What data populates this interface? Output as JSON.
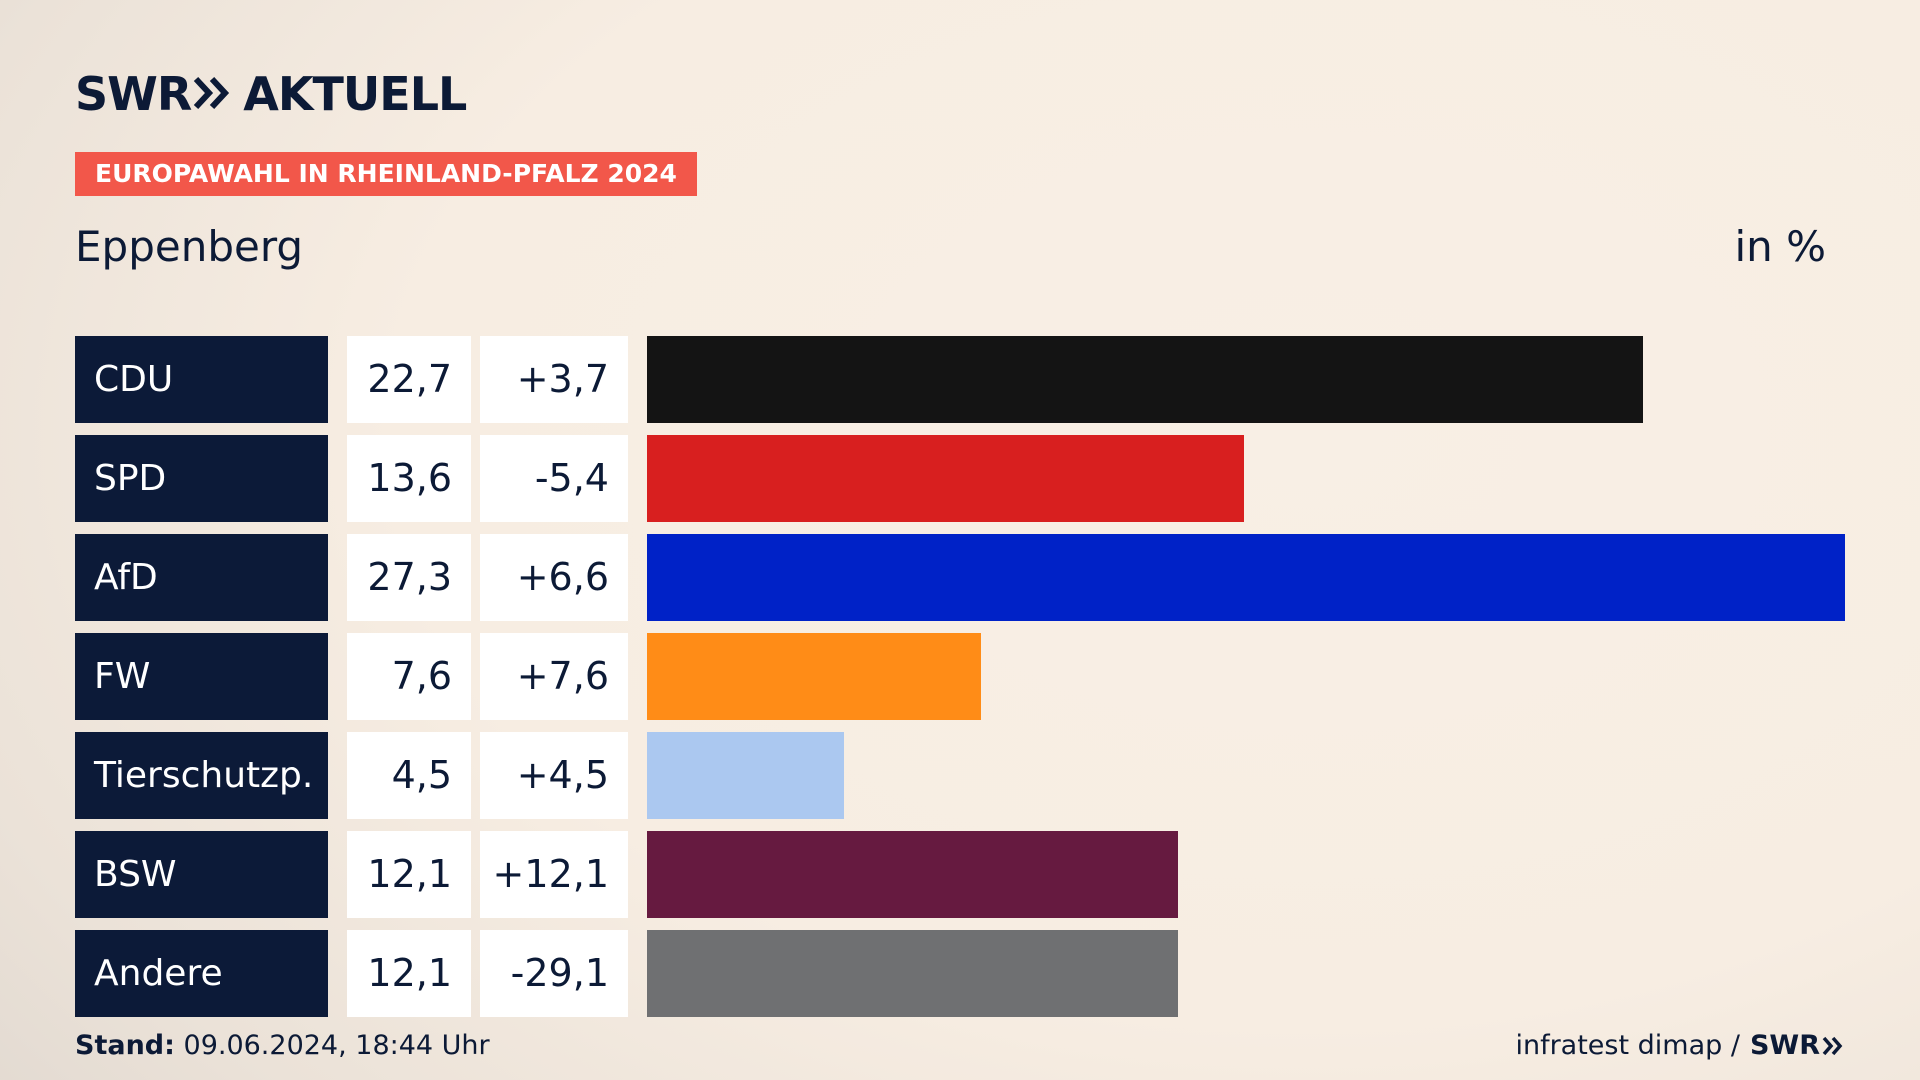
{
  "header": {
    "brand": "SWR",
    "brand_suffix": "AKTUELL",
    "tag": "EUROPAWAHL IN RHEINLAND-PFALZ 2024",
    "region": "Eppenberg",
    "unit": "in %"
  },
  "footer": {
    "stand_label": "Stand:",
    "stand_value": "09.06.2024, 18:44 Uhr",
    "source": "infratest dimap /",
    "source_brand": "SWR"
  },
  "colors": {
    "accent": "#f2574a",
    "navy": "#0c1a38"
  },
  "chart_data": {
    "type": "bar",
    "orientation": "horizontal",
    "title": "Eppenberg",
    "unit": "in %",
    "xlim": [
      0,
      27.3
    ],
    "grid": false,
    "rows": [
      {
        "party": "CDU",
        "value": 22.7,
        "value_label": "22,7",
        "diff_label": "+3,7",
        "color": "#141414"
      },
      {
        "party": "SPD",
        "value": 13.6,
        "value_label": "13,6",
        "diff_label": "-5,4",
        "color": "#d81f1f"
      },
      {
        "party": "AfD",
        "value": 27.3,
        "value_label": "27,3",
        "diff_label": "+6,6",
        "color": "#0022c7"
      },
      {
        "party": "FW",
        "value": 7.6,
        "value_label": "7,6",
        "diff_label": "+7,6",
        "color": "#ff8c17"
      },
      {
        "party": "Tierschutzp.",
        "value": 4.5,
        "value_label": "4,5",
        "diff_label": "+4,5",
        "color": "#abc8f0"
      },
      {
        "party": "BSW",
        "value": 12.1,
        "value_label": "12,1",
        "diff_label": "+12,1",
        "color": "#661a40"
      },
      {
        "party": "Andere",
        "value": 12.1,
        "value_label": "12,1",
        "diff_label": "-29,1",
        "color": "#6f7072"
      }
    ]
  }
}
